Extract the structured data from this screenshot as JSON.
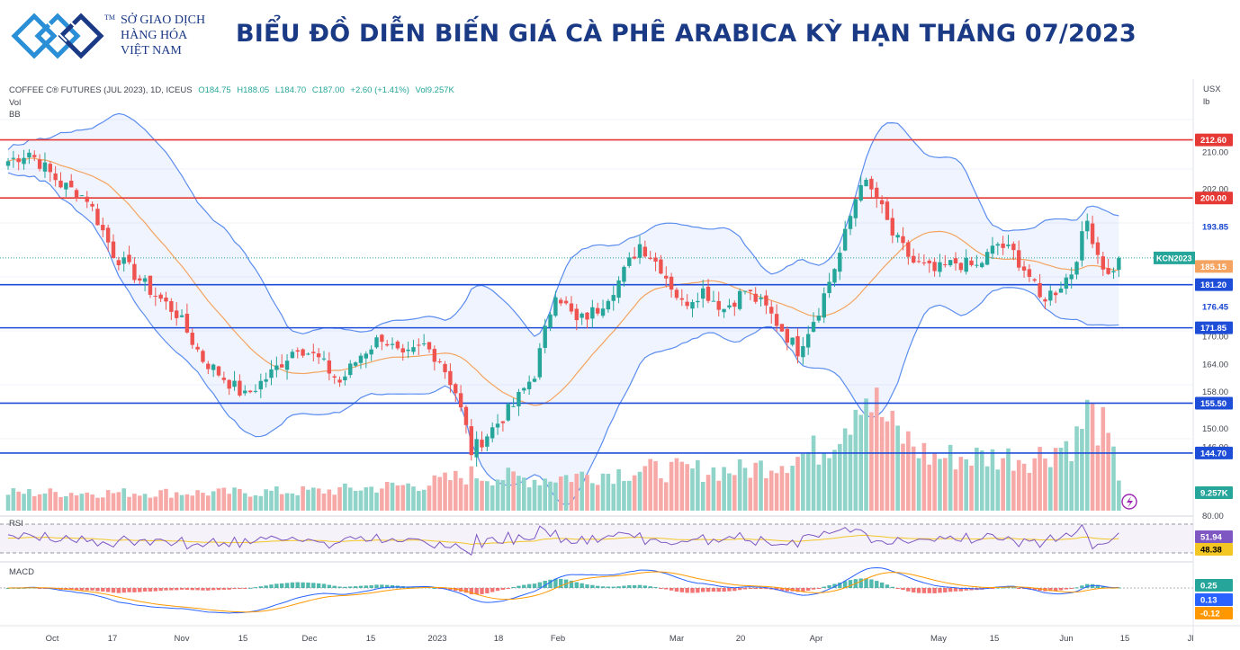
{
  "header": {
    "org_line1": "SỞ GIAO DỊCH",
    "org_line2": "HÀNG HÓA",
    "org_line3": "VIỆT NAM",
    "trademark": "TM",
    "title": "BIỂU ĐỒ DIỄN BIẾN GIÁ CÀ PHÊ ARABICA KỲ HẠN THÁNG 07/2023"
  },
  "chart_data": {
    "type": "candlestick",
    "title": "",
    "legend": {
      "symbol": "COFFEE C® FUTURES (JUL 2023), 1D, ICEUS",
      "open": "O184.75",
      "high": "H188.05",
      "low": "L184.70",
      "close": "C187.00",
      "change": "+2.60 (+1.41%)",
      "volume": "Vol9.257K",
      "vol_label": "Vol",
      "bb_label": "BB"
    },
    "currency": "USX",
    "unit": "lb",
    "ylim": [
      140,
      217
    ],
    "y_ticks": [
      "210.00",
      "202.00",
      "193.85",
      "185.15",
      "176.45",
      "170.00",
      "164.00",
      "158.00",
      "150.00",
      "146.00",
      "144.70"
    ],
    "levels": [
      {
        "value": 212.6,
        "label": "212.60",
        "color": "#e53935"
      },
      {
        "value": 200.0,
        "label": "200.00",
        "color": "#e53935"
      },
      {
        "value": 181.2,
        "label": "181.20",
        "color": "#1e4ed8"
      },
      {
        "value": 171.85,
        "label": "171.85",
        "color": "#1e4ed8"
      },
      {
        "value": 155.5,
        "label": "155.50",
        "color": "#1e4ed8"
      },
      {
        "value": 144.7,
        "label": "144.70",
        "color": "#1e4ed8"
      }
    ],
    "badges": [
      {
        "value": 193.85,
        "label": "193.85",
        "kind": "bb-upper"
      },
      {
        "value": 176.45,
        "label": "176.45",
        "kind": "bb-lower"
      },
      {
        "value": 185.15,
        "label": "185.15",
        "kind": "basis"
      },
      {
        "value": 187.0,
        "label": "187.00",
        "kind": "last"
      }
    ],
    "last_label": "KCN2023",
    "last_price": 187.0,
    "volume_label": "9.257K",
    "x_ticks": [
      "Oct",
      "17",
      "Nov",
      "15",
      "Dec",
      "15",
      "2023",
      "18",
      "Feb",
      "Mar",
      "20",
      "Apr",
      "May",
      "15",
      "Jun",
      "15",
      "Jl"
    ],
    "rsi": {
      "label": "RSI",
      "levels": [
        "80.00"
      ],
      "value": "51.94",
      "ma": "48.38"
    },
    "macd": {
      "label": "MACD",
      "hist": "0.25",
      "macd": "0.13",
      "signal": "-0.12"
    },
    "anchors": [
      [
        0,
        208
      ],
      [
        4,
        210
      ],
      [
        10,
        203
      ],
      [
        15,
        200
      ],
      [
        20,
        188
      ],
      [
        27,
        180
      ],
      [
        32,
        175
      ],
      [
        37,
        165
      ],
      [
        42,
        160
      ],
      [
        45,
        157
      ],
      [
        50,
        162
      ],
      [
        55,
        168
      ],
      [
        59,
        165
      ],
      [
        63,
        160
      ],
      [
        67,
        166
      ],
      [
        71,
        170
      ],
      [
        75,
        165
      ],
      [
        79,
        168
      ],
      [
        82,
        165
      ],
      [
        85,
        158
      ],
      [
        87,
        150
      ],
      [
        88,
        145
      ],
      [
        92,
        150
      ],
      [
        96,
        155
      ],
      [
        100,
        162
      ],
      [
        104,
        180
      ],
      [
        108,
        173
      ],
      [
        112,
        176
      ],
      [
        116,
        182
      ],
      [
        120,
        190
      ],
      [
        124,
        185
      ],
      [
        128,
        177
      ],
      [
        132,
        180
      ],
      [
        136,
        176
      ],
      [
        140,
        180
      ],
      [
        144,
        176
      ],
      [
        148,
        170
      ],
      [
        150,
        167
      ],
      [
        154,
        176
      ],
      [
        158,
        188
      ],
      [
        162,
        204
      ],
      [
        165,
        200
      ],
      [
        168,
        192
      ],
      [
        172,
        186
      ],
      [
        176,
        184
      ],
      [
        180,
        186
      ],
      [
        184,
        185
      ],
      [
        188,
        190
      ],
      [
        191,
        188
      ],
      [
        194,
        183
      ],
      [
        196,
        178
      ],
      [
        199,
        180
      ],
      [
        202,
        184
      ],
      [
        205,
        195
      ],
      [
        207,
        188
      ],
      [
        209,
        183
      ],
      [
        211,
        187
      ]
    ],
    "volume_anchors": [
      [
        0,
        20
      ],
      [
        40,
        20
      ],
      [
        60,
        22
      ],
      [
        80,
        30
      ],
      [
        88,
        40
      ],
      [
        100,
        35
      ],
      [
        120,
        45
      ],
      [
        140,
        45
      ],
      [
        150,
        60
      ],
      [
        155,
        70
      ],
      [
        160,
        110
      ],
      [
        162,
        140
      ],
      [
        168,
        90
      ],
      [
        175,
        60
      ],
      [
        185,
        60
      ],
      [
        195,
        60
      ],
      [
        203,
        80
      ],
      [
        205,
        110
      ],
      [
        208,
        90
      ],
      [
        211,
        40
      ]
    ]
  }
}
